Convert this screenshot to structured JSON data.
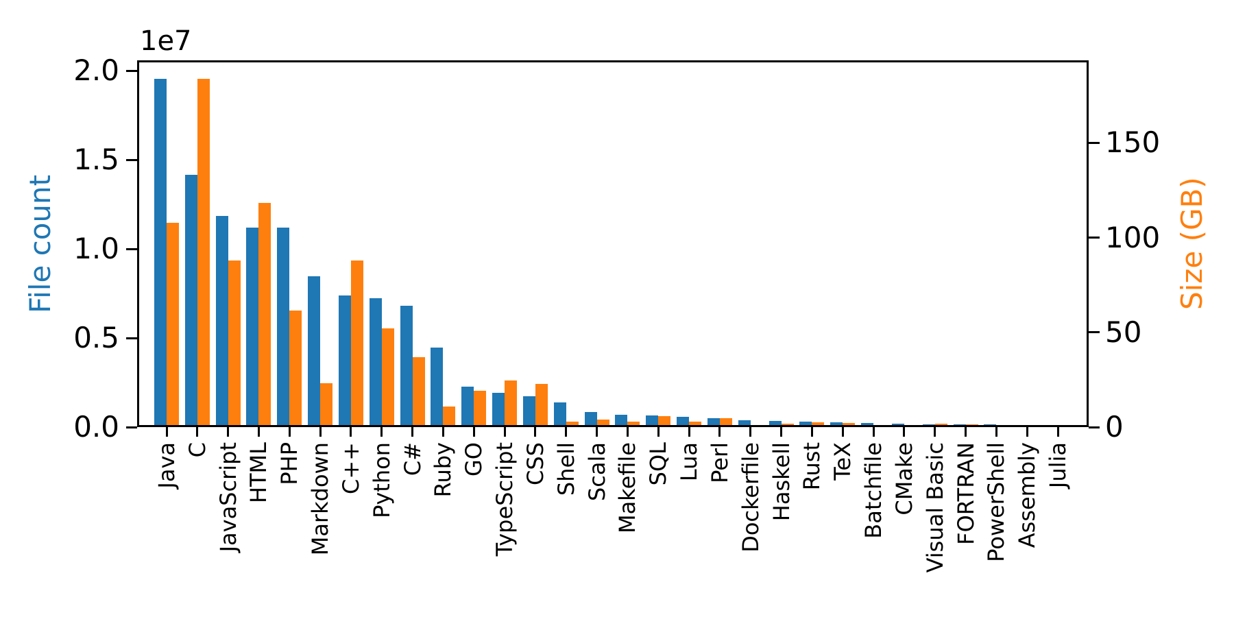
{
  "figure": {
    "offset_text": "1e7",
    "background": "#ffffff",
    "left_axis": {
      "label": "File count",
      "color": "#1f77b4",
      "tick_labels": [
        "0.0",
        "0.5",
        "1.0",
        "1.5",
        "2.0"
      ],
      "tick_values": [
        0,
        5000000,
        10000000,
        15000000,
        20000000
      ],
      "ylim": [
        0,
        20580000
      ]
    },
    "right_axis": {
      "label": "Size (GB)",
      "color": "#ff7f0e",
      "tick_labels": [
        "0",
        "50",
        "100",
        "150"
      ],
      "tick_values": [
        0,
        50,
        100,
        150
      ],
      "ylim": [
        0,
        193.5
      ]
    }
  },
  "chart_data": {
    "type": "bar",
    "title": "",
    "xlabel": "",
    "grid": false,
    "legend_position": "none",
    "x_tick_rotation_deg": 90,
    "bar_colors": {
      "file_count": "#1f77b4",
      "size_gb": "#ff7f0e"
    },
    "categories": [
      "Java",
      "C",
      "JavaScript",
      "HTML",
      "PHP",
      "Markdown",
      "C++",
      "Python",
      "C#",
      "Ruby",
      "GO",
      "TypeScript",
      "CSS",
      "Shell",
      "Scala",
      "Makefile",
      "SQL",
      "Lua",
      "Perl",
      "Dockerfile",
      "Haskell",
      "Rust",
      "TeX",
      "Batchfile",
      "CMake",
      "Visual Basic",
      "FORTRAN",
      "PowerShell",
      "Assembly",
      "Julia"
    ],
    "series": [
      {
        "name": "File count",
        "axis": "left",
        "color": "#1f77b4",
        "values": [
          19548190,
          14143113,
          11839883,
          11178557,
          11177610,
          8464626,
          7380520,
          7226626,
          6811652,
          4473331,
          2265436,
          1940406,
          1734406,
          1385648,
          835755,
          679430,
          656671,
          578554,
          497949,
          366505,
          340623,
          322431,
          251015,
          236945,
          175282,
          155652,
          142038,
          136846,
          82905,
          58317
        ]
      },
      {
        "name": "Size (GB)",
        "axis": "right",
        "color": "#ff7f0e",
        "values": [
          107.7,
          183.83,
          87.82,
          118.12,
          61.41,
          23.09,
          87.73,
          52.03,
          36.83,
          10.95,
          19.28,
          24.59,
          22.67,
          3.01,
          3.87,
          2.92,
          5.67,
          2.81,
          4.7,
          0.71,
          1.85,
          2.68,
          2.15,
          0.7,
          0.54,
          1.91,
          1.62,
          0.69,
          0.78,
          0.29
        ]
      }
    ],
    "left_ylim": [
      0,
      20580000
    ],
    "right_ylim": [
      0,
      193.5
    ]
  }
}
